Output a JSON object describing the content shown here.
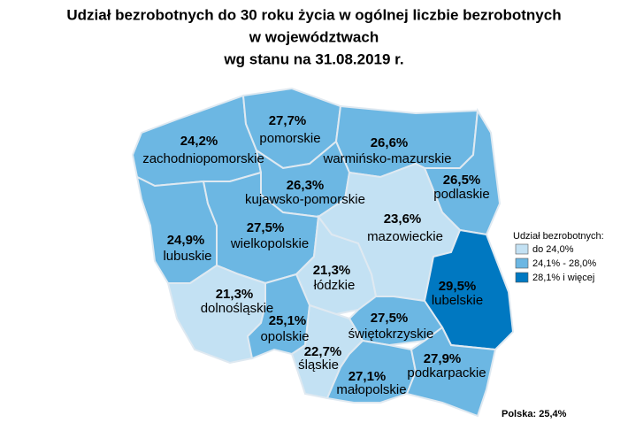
{
  "title": [
    "Udział bezrobotnych do 30 roku życia w ogólnej liczbie bezrobotnych",
    "w województwach",
    "wg stanu na 31.08.2019 r."
  ],
  "regions": [
    {
      "name": "zachodniopomorskie",
      "value": 24.2,
      "label": "24,2%"
    },
    {
      "name": "pomorskie",
      "value": 27.7,
      "label": "27,7%"
    },
    {
      "name": "warmińsko-mazurskie",
      "value": 26.6,
      "label": "26,6%"
    },
    {
      "name": "podlaskie",
      "value": 26.5,
      "label": "26,5%"
    },
    {
      "name": "kujawsko-pomorskie",
      "value": 26.3,
      "label": "26,3%"
    },
    {
      "name": "mazowieckie",
      "value": 23.6,
      "label": "23,6%"
    },
    {
      "name": "lubuskie",
      "value": 24.9,
      "label": "24,9%"
    },
    {
      "name": "wielkopolskie",
      "value": 27.5,
      "label": "27,5%"
    },
    {
      "name": "łódzkie",
      "value": 21.3,
      "label": "21,3%"
    },
    {
      "name": "lubelskie",
      "value": 29.5,
      "label": "29,5%"
    },
    {
      "name": "dolnośląskie",
      "value": 21.3,
      "label": "21,3%"
    },
    {
      "name": "opolskie",
      "value": 25.1,
      "label": "25,1%"
    },
    {
      "name": "świętokrzyskie",
      "value": 27.5,
      "label": "27,5%"
    },
    {
      "name": "śląskie",
      "value": 22.7,
      "label": "22,7%"
    },
    {
      "name": "małopolskie",
      "value": 27.1,
      "label": "27,1%"
    },
    {
      "name": "podkarpackie",
      "value": 27.9,
      "label": "27,9%"
    }
  ],
  "legend": {
    "title": "Udział bezrobotnych:",
    "classes": [
      {
        "label": "do 24,0%",
        "color": "#c3e1f3",
        "max": 24.0
      },
      {
        "label": "24,1% - 28,0%",
        "color": "#6cb7e3",
        "min": 24.1,
        "max": 28.0
      },
      {
        "label": "28,1% i więcej",
        "color": "#0078c1",
        "min": 28.1
      }
    ]
  },
  "total": {
    "label": "Polska:",
    "value": 25.4,
    "value_label": "25,4%"
  }
}
